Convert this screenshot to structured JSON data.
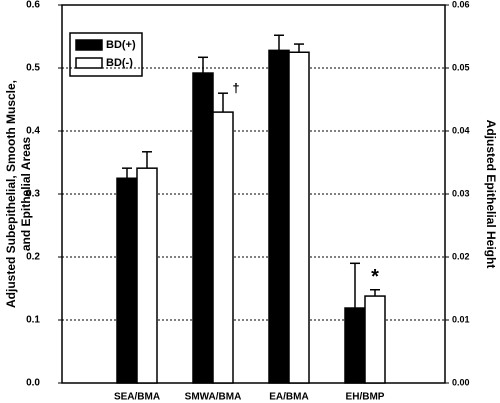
{
  "chart_data": {
    "type": "bar",
    "ylabel": [
      "Adjusted Subepithelial, Smooth Muscle,",
      "and Epithelial Areas"
    ],
    "y2label": "Adjusted Epithelial Height",
    "categories": [
      "SEA/BMA",
      "SMWA/BMA",
      "EA/BMA",
      "EH/BMP"
    ],
    "category_axis": [
      "y",
      "y",
      "y",
      "y2"
    ],
    "series": [
      {
        "name": "BD(+)",
        "color": "#000000",
        "values": [
          0.325,
          0.492,
          0.528,
          0.0119
        ],
        "errors": [
          0.016,
          0.025,
          0.024,
          0.0071
        ]
      },
      {
        "name": "BD(-)",
        "color": "#ffffff",
        "values": [
          0.341,
          0.43,
          0.525,
          0.0138
        ],
        "errors": [
          0.026,
          0.03,
          0.013,
          0.001
        ]
      }
    ],
    "annotations": [
      "†",
      "*"
    ],
    "ylim": [
      0,
      0.6
    ],
    "yticks": [
      {
        "value": 0,
        "label": "0.0"
      },
      0.1,
      0.2,
      0.3,
      0.4,
      0.5,
      0.6
    ],
    "y2lim": [
      0,
      0.06
    ],
    "y2ticks": [
      {
        "value": 0,
        "label": "0.00"
      },
      {
        "value": 0.01,
        "label": "0.01"
      },
      {
        "value": 0.02,
        "label": "0.02"
      },
      {
        "value": 0.03,
        "label": "0.03"
      },
      {
        "value": 0.04,
        "label": "0.04"
      },
      {
        "value": 0.05,
        "label": "0.05"
      },
      {
        "value": 0.06,
        "label": "0.06"
      }
    ],
    "grid": true,
    "legend": "upper left"
  }
}
